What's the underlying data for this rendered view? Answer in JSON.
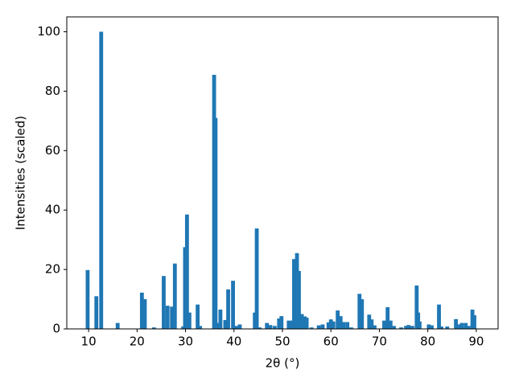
{
  "chart_data": {
    "type": "bar",
    "xlabel": "2θ (°)",
    "ylabel": "Intensities (scaled)",
    "color": "#1f77b4",
    "x": [
      9.8,
      11.6,
      12.6,
      16,
      21,
      21.6,
      23.5,
      25.5,
      26.3,
      27.2,
      27.8,
      29.5,
      29.9,
      30.3,
      30.8,
      32.5,
      33,
      35.9,
      36.2,
      36.8,
      37.2,
      38.2,
      38.8,
      39.8,
      40.5,
      41.2,
      44.3,
      44.7,
      45.3,
      46.8,
      47.5,
      48.4,
      49.3,
      49.8,
      51.3,
      52,
      52.4,
      53,
      53.4,
      54,
      54.6,
      55,
      56,
      57.5,
      58.3,
      59.5,
      60,
      60.5,
      61.4,
      62,
      62.6,
      63.4,
      64.2,
      65.9,
      66.4,
      67.9,
      68.4,
      69,
      71,
      71.7,
      72.3,
      73,
      74.5,
      75.5,
      76,
      76.8,
      77.7,
      78,
      78.3,
      80.2,
      80.8,
      82.3,
      82.8,
      84,
      85.8,
      86.5,
      87,
      87.8,
      88.4,
      89.2,
      89.6
    ],
    "values": [
      19.8,
      11,
      100,
      2,
      12.2,
      10,
      0.5,
      17.8,
      7.8,
      7.5,
      22,
      0.8,
      27.5,
      38.5,
      5.5,
      8.2,
      1,
      85.5,
      71,
      2,
      6.5,
      3,
      13.3,
      16.2,
      1,
      1.5,
      5.5,
      33.8,
      0.5,
      2,
      1.3,
      1,
      3.5,
      4.3,
      2.8,
      2.8,
      23.5,
      25.5,
      19.5,
      5,
      4.2,
      3.8,
      0.5,
      1.2,
      1.5,
      2.2,
      3.2,
      2.5,
      6.2,
      4.3,
      2.3,
      2.3,
      0.5,
      11.8,
      10,
      4.8,
      3.2,
      1.2,
      2.8,
      7.3,
      2.8,
      1,
      0.5,
      1,
      1.3,
      1,
      14.6,
      5.5,
      2.5,
      1.5,
      1.2,
      8.2,
      0.8,
      0.8,
      3.3,
      1.5,
      2,
      2,
      1,
      6.5,
      4.6
    ],
    "xlim": [
      5.5,
      94.5
    ],
    "ylim": [
      0,
      105
    ],
    "xticks": [
      10,
      20,
      30,
      40,
      50,
      60,
      70,
      80,
      90
    ],
    "yticks": [
      0,
      20,
      40,
      60,
      80,
      100
    ]
  }
}
